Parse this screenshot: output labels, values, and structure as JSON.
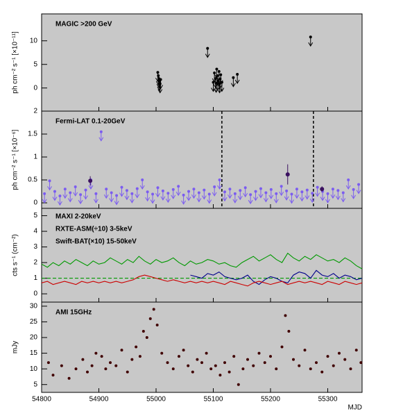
{
  "chart_data": [
    {
      "type": "scatter",
      "label": "MAGIC >200 GeV",
      "ylabel": "ph cm⁻² s⁻¹ [×10⁻¹¹]",
      "xlim": [
        54800,
        55360
      ],
      "ylim": [
        -4.9,
        15.7
      ],
      "yticks": [
        0,
        5,
        10
      ],
      "x": [
        55003,
        55004,
        55005,
        55006,
        55007,
        55008,
        55090,
        55100,
        55102,
        55104,
        55105,
        55106,
        55107,
        55108,
        55110,
        55111,
        55112,
        55113,
        55115,
        55135,
        55142,
        55270
      ],
      "series": [
        {
          "color": "#000000",
          "upper_limit": true,
          "values": [
            3.3,
            2.6,
            2.0,
            1.4,
            0.9,
            1.8,
            8.4,
            1.2,
            3.2,
            2.0,
            1.0,
            4.0,
            2.6,
            1.5,
            3.5,
            0.9,
            1.9,
            2.8,
            1.2,
            2.2,
            2.9,
            10.8
          ]
        }
      ]
    },
    {
      "type": "scatter",
      "label": "Fermi-LAT 0.1-20GeV",
      "ylabel": "ph cm⁻² s⁻¹ [×10⁻⁶]",
      "xlim": [
        54800,
        55360
      ],
      "ylim": [
        -0.12,
        2.0
      ],
      "yticks": [
        0,
        0.5,
        1,
        1.5,
        2
      ],
      "vlines": [
        55115,
        55275
      ],
      "series": [
        {
          "color": "#7b5cf0",
          "upper_limit": true,
          "x": [
            54805,
            54814,
            54823,
            54832,
            54841,
            54850,
            54859,
            54868,
            54877,
            54886,
            54895,
            54904,
            54913,
            54922,
            54931,
            54940,
            54949,
            54958,
            54967,
            54976,
            54985,
            54994,
            55003,
            55012,
            55021,
            55030,
            55039,
            55048,
            55057,
            55066,
            55075,
            55084,
            55093,
            55102,
            55111,
            55120,
            55129,
            55138,
            55147,
            55156,
            55165,
            55174,
            55183,
            55192,
            55201,
            55210,
            55219,
            55228,
            55237,
            55246,
            55255,
            55264,
            55273,
            55282,
            55291,
            55300,
            55309,
            55318,
            55327,
            55336,
            55345,
            55354
          ],
          "values": [
            0.2,
            0.48,
            0.25,
            0.15,
            0.3,
            0.22,
            0.35,
            0.18,
            0.28,
            0.5,
            0.2,
            1.55,
            0.3,
            0.22,
            0.16,
            0.34,
            0.27,
            0.2,
            0.31,
            0.5,
            0.24,
            0.19,
            0.33,
            0.26,
            0.21,
            0.29,
            0.36,
            0.17,
            0.25,
            0.3,
            0.22,
            0.28,
            0.19,
            0.35,
            0.5,
            0.24,
            0.3,
            0.2,
            0.27,
            0.33,
            0.18,
            0.25,
            0.31,
            0.22,
            0.29,
            0.2,
            0.36,
            0.26,
            0.19,
            0.3,
            0.24,
            0.28,
            0.21,
            0.34,
            0.25,
            0.2,
            0.3,
            0.27,
            0.22,
            0.5,
            0.29,
            0.4
          ]
        },
        {
          "color": "#3a1060",
          "x": [
            54885,
            55230,
            55290
          ],
          "values": [
            0.48,
            0.62,
            0.3
          ],
          "errors": [
            0.1,
            0.22,
            0.06
          ]
        }
      ]
    },
    {
      "type": "line",
      "ylabel": "cts s⁻¹ (cm⁻²)",
      "xlim": [
        54800,
        55360
      ],
      "ylim": [
        -0.53,
        5.47
      ],
      "yticks": [
        0,
        1,
        2,
        3,
        4,
        5
      ],
      "hlines": [
        {
          "value": 1,
          "color": "#009900"
        }
      ],
      "x": [
        54800,
        54810,
        54820,
        54830,
        54840,
        54850,
        54860,
        54870,
        54880,
        54890,
        54900,
        54910,
        54920,
        54930,
        54940,
        54950,
        54960,
        54970,
        54980,
        54990,
        55000,
        55010,
        55020,
        55030,
        55040,
        55050,
        55060,
        55070,
        55080,
        55090,
        55100,
        55110,
        55120,
        55130,
        55140,
        55150,
        55160,
        55170,
        55180,
        55190,
        55200,
        55210,
        55220,
        55230,
        55240,
        55250,
        55260,
        55270,
        55280,
        55290,
        55300,
        55310,
        55320,
        55330,
        55340,
        55350,
        55360
      ],
      "series": [
        {
          "name": "MAXI 2-20keV",
          "color": "#00008b",
          "values": [
            null,
            null,
            null,
            null,
            null,
            null,
            null,
            null,
            null,
            null,
            null,
            null,
            null,
            null,
            null,
            null,
            null,
            null,
            null,
            null,
            null,
            null,
            null,
            null,
            null,
            null,
            1.2,
            1.1,
            1.0,
            1.3,
            1.2,
            1.4,
            1.1,
            1.0,
            0.9,
            1.0,
            1.2,
            0.8,
            0.6,
            0.9,
            1.1,
            1.0,
            0.8,
            0.7,
            1.2,
            1.4,
            1.3,
            1.0,
            1.5,
            1.2,
            1.1,
            1.3,
            1.0,
            1.2,
            1.1,
            0.9,
            1.0
          ]
        },
        {
          "name": "RXTE-ASM(÷10) 3-5keV",
          "color": "#cc0000",
          "values": [
            0.7,
            0.8,
            0.6,
            0.7,
            0.8,
            0.7,
            0.6,
            0.8,
            0.7,
            0.8,
            0.7,
            0.8,
            0.7,
            0.8,
            0.7,
            0.8,
            0.9,
            1.1,
            1.2,
            1.1,
            1.0,
            0.9,
            0.8,
            0.9,
            0.8,
            0.7,
            0.8,
            0.7,
            0.8,
            0.7,
            0.8,
            0.7,
            0.6,
            0.8,
            0.7,
            0.6,
            0.5,
            0.7,
            0.8,
            0.7,
            0.6,
            0.7,
            0.8,
            0.6,
            0.7,
            0.8,
            0.7,
            0.8,
            0.7,
            0.6,
            0.8,
            0.7,
            0.6,
            0.8,
            0.7,
            0.6,
            0.7
          ]
        },
        {
          "name": "Swift-BAT(×10) 15-50keV",
          "color": "#009900",
          "values": [
            1.9,
            1.7,
            2.0,
            1.8,
            2.1,
            1.9,
            2.2,
            2.0,
            1.8,
            2.1,
            1.9,
            2.0,
            2.3,
            2.1,
            1.9,
            2.2,
            2.0,
            2.4,
            2.1,
            1.9,
            2.2,
            2.0,
            2.1,
            2.3,
            2.0,
            1.8,
            2.1,
            1.9,
            2.0,
            2.2,
            2.1,
            1.9,
            2.0,
            1.8,
            1.7,
            2.0,
            2.2,
            2.4,
            2.1,
            2.3,
            2.5,
            2.2,
            2.0,
            2.6,
            2.3,
            2.1,
            2.4,
            2.2,
            2.5,
            2.3,
            2.1,
            2.2,
            2.0,
            2.3,
            2.1,
            1.8,
            1.6
          ]
        }
      ]
    },
    {
      "type": "scatter",
      "label": "AMI 15GHz",
      "ylabel": "mJy",
      "xlabel": "MJD",
      "xlim": [
        54800,
        55360
      ],
      "ylim": [
        2.5,
        31.3
      ],
      "yticks": [
        5,
        10,
        15,
        20,
        25,
        30
      ],
      "xticks": [
        54800,
        54900,
        55000,
        55100,
        55200,
        55300
      ],
      "x": [
        54812,
        54820,
        54835,
        54848,
        54860,
        54872,
        54880,
        54888,
        54895,
        54905,
        54912,
        54920,
        54930,
        54940,
        54950,
        54958,
        54965,
        54972,
        54978,
        54984,
        54990,
        54996,
        55002,
        55010,
        55020,
        55030,
        55040,
        55048,
        55056,
        55064,
        55072,
        55080,
        55088,
        55096,
        55104,
        55112,
        55120,
        55128,
        55136,
        55144,
        55152,
        55160,
        55170,
        55180,
        55190,
        55200,
        55210,
        55220,
        55226,
        55232,
        55240,
        55250,
        55260,
        55270,
        55280,
        55290,
        55300,
        55310,
        55320,
        55330,
        55340,
        55350,
        55358
      ],
      "series": [
        {
          "color": "#400000",
          "values": [
            12,
            8,
            11,
            7,
            10,
            13,
            9,
            11,
            15,
            14,
            10,
            12,
            11,
            16,
            9,
            13,
            17,
            14,
            22,
            20,
            26,
            29,
            24,
            15,
            12,
            10,
            14,
            16,
            11,
            9,
            13,
            12,
            15,
            10,
            11,
            8,
            12,
            9,
            14,
            5,
            10,
            13,
            11,
            15,
            12,
            14,
            10,
            17,
            27,
            22,
            13,
            11,
            16,
            10,
            12,
            9,
            14,
            11,
            15,
            13,
            10,
            16,
            12
          ]
        }
      ]
    }
  ]
}
